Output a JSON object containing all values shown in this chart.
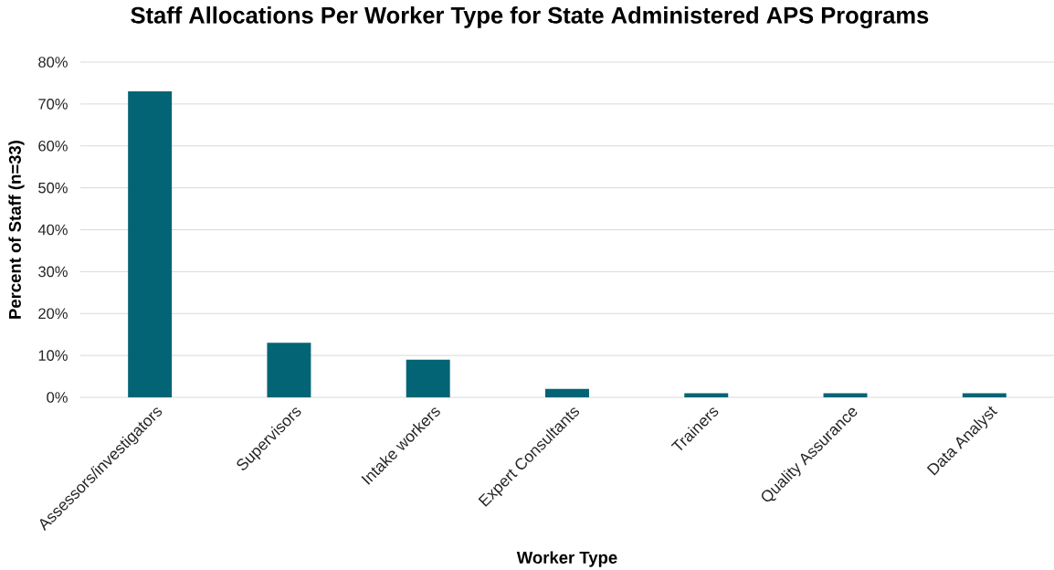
{
  "chart_data": {
    "type": "bar",
    "title": "Staff Allocations Per Worker Type for State Administered APS Programs",
    "xlabel": "Worker Type",
    "ylabel": "Percent of Staff (n=33)",
    "categories": [
      "Assessors/investigators",
      "Supervisors",
      "Intake workers",
      "Expert Consultants",
      "Trainers",
      "Quality Assurance",
      "Data Analyst"
    ],
    "values": [
      73,
      13,
      9,
      2,
      1,
      1,
      1
    ],
    "color": "#036475",
    "ylim": [
      0,
      80
    ],
    "yticks": [
      {
        "value": 0,
        "label": "0%"
      },
      {
        "value": 10,
        "label": "10%"
      },
      {
        "value": 20,
        "label": "20%"
      },
      {
        "value": 30,
        "label": "30%"
      },
      {
        "value": 40,
        "label": "40%"
      },
      {
        "value": 50,
        "label": "50%"
      },
      {
        "value": 60,
        "label": "60%"
      },
      {
        "value": 70,
        "label": "70%"
      },
      {
        "value": 80,
        "label": "80%"
      }
    ],
    "grid": "y"
  }
}
